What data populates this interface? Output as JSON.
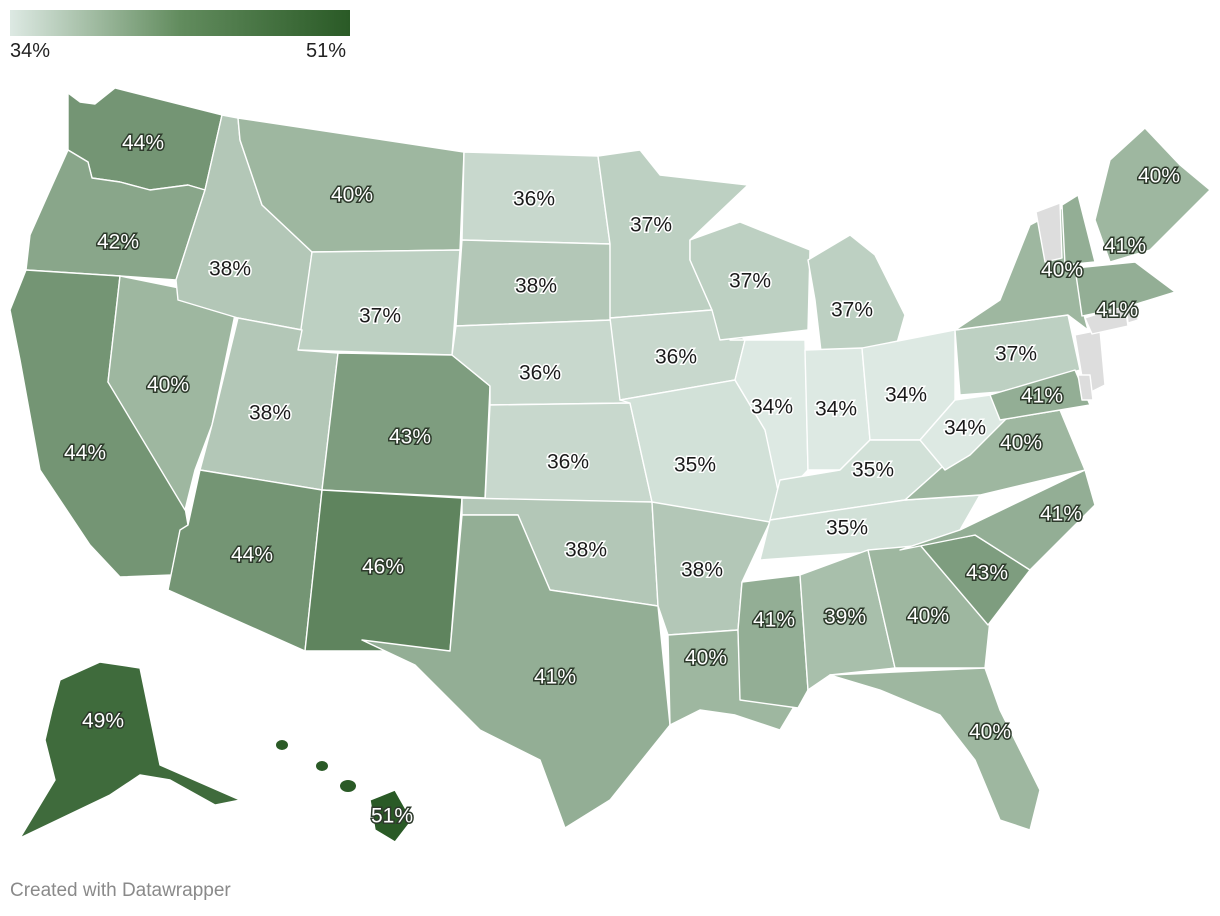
{
  "legend": {
    "min_label": "34%",
    "max_label": "51%",
    "min_value": 34,
    "max_value": 51,
    "min_color": "#dde9e3",
    "max_color": "#2a5a26"
  },
  "footer": {
    "credit": "Created with Datawrapper"
  },
  "no_data_color": "#dddddd",
  "states": [
    {
      "id": "wa",
      "label": "44%",
      "value": 44
    },
    {
      "id": "or",
      "label": "42%",
      "value": 42
    },
    {
      "id": "ca",
      "label": "44%",
      "value": 44
    },
    {
      "id": "nv",
      "label": "40%",
      "value": 40
    },
    {
      "id": "id",
      "label": "38%",
      "value": 38
    },
    {
      "id": "mt",
      "label": "40%",
      "value": 40
    },
    {
      "id": "wy",
      "label": "37%",
      "value": 37
    },
    {
      "id": "ut",
      "label": "38%",
      "value": 38
    },
    {
      "id": "co",
      "label": "43%",
      "value": 43
    },
    {
      "id": "az",
      "label": "44%",
      "value": 44
    },
    {
      "id": "nm",
      "label": "46%",
      "value": 46
    },
    {
      "id": "nd",
      "label": "36%",
      "value": 36
    },
    {
      "id": "sd",
      "label": "38%",
      "value": 38
    },
    {
      "id": "ne",
      "label": "36%",
      "value": 36
    },
    {
      "id": "ks",
      "label": "36%",
      "value": 36
    },
    {
      "id": "ok",
      "label": "38%",
      "value": 38
    },
    {
      "id": "tx",
      "label": "41%",
      "value": 41
    },
    {
      "id": "mn",
      "label": "37%",
      "value": 37
    },
    {
      "id": "ia",
      "label": "36%",
      "value": 36
    },
    {
      "id": "mo",
      "label": "35%",
      "value": 35
    },
    {
      "id": "ar",
      "label": "38%",
      "value": 38
    },
    {
      "id": "la",
      "label": "40%",
      "value": 40
    },
    {
      "id": "wi",
      "label": "37%",
      "value": 37
    },
    {
      "id": "il",
      "label": "34%",
      "value": 34
    },
    {
      "id": "mi",
      "label": "37%",
      "value": 37
    },
    {
      "id": "in",
      "label": "34%",
      "value": 34
    },
    {
      "id": "oh",
      "label": "34%",
      "value": 34
    },
    {
      "id": "ky",
      "label": "35%",
      "value": 35
    },
    {
      "id": "tn",
      "label": "35%",
      "value": 35
    },
    {
      "id": "ms",
      "label": "41%",
      "value": 41
    },
    {
      "id": "al",
      "label": "39%",
      "value": 39
    },
    {
      "id": "ga",
      "label": "40%",
      "value": 40
    },
    {
      "id": "fl",
      "label": "40%",
      "value": 40
    },
    {
      "id": "sc",
      "label": "43%",
      "value": 43
    },
    {
      "id": "nc",
      "label": "41%",
      "value": 41
    },
    {
      "id": "va",
      "label": "40%",
      "value": 40
    },
    {
      "id": "wv",
      "label": "34%",
      "value": 34
    },
    {
      "id": "pa",
      "label": "37%",
      "value": 37
    },
    {
      "id": "ny",
      "label": "40%",
      "value": 40
    },
    {
      "id": "md",
      "label": "41%",
      "value": 41
    },
    {
      "id": "nj",
      "label": "",
      "value": null
    },
    {
      "id": "de",
      "label": "",
      "value": null
    },
    {
      "id": "ct",
      "label": "",
      "value": null
    },
    {
      "id": "ri",
      "label": "",
      "value": null
    },
    {
      "id": "vt",
      "label": "",
      "value": null
    },
    {
      "id": "nh",
      "label": "41%",
      "value": 41
    },
    {
      "id": "ma",
      "label": "41%",
      "value": 41
    },
    {
      "id": "me",
      "label": "40%",
      "value": 40
    },
    {
      "id": "ak",
      "label": "49%",
      "value": 49
    },
    {
      "id": "hi",
      "label": "51%",
      "value": 51
    }
  ]
}
